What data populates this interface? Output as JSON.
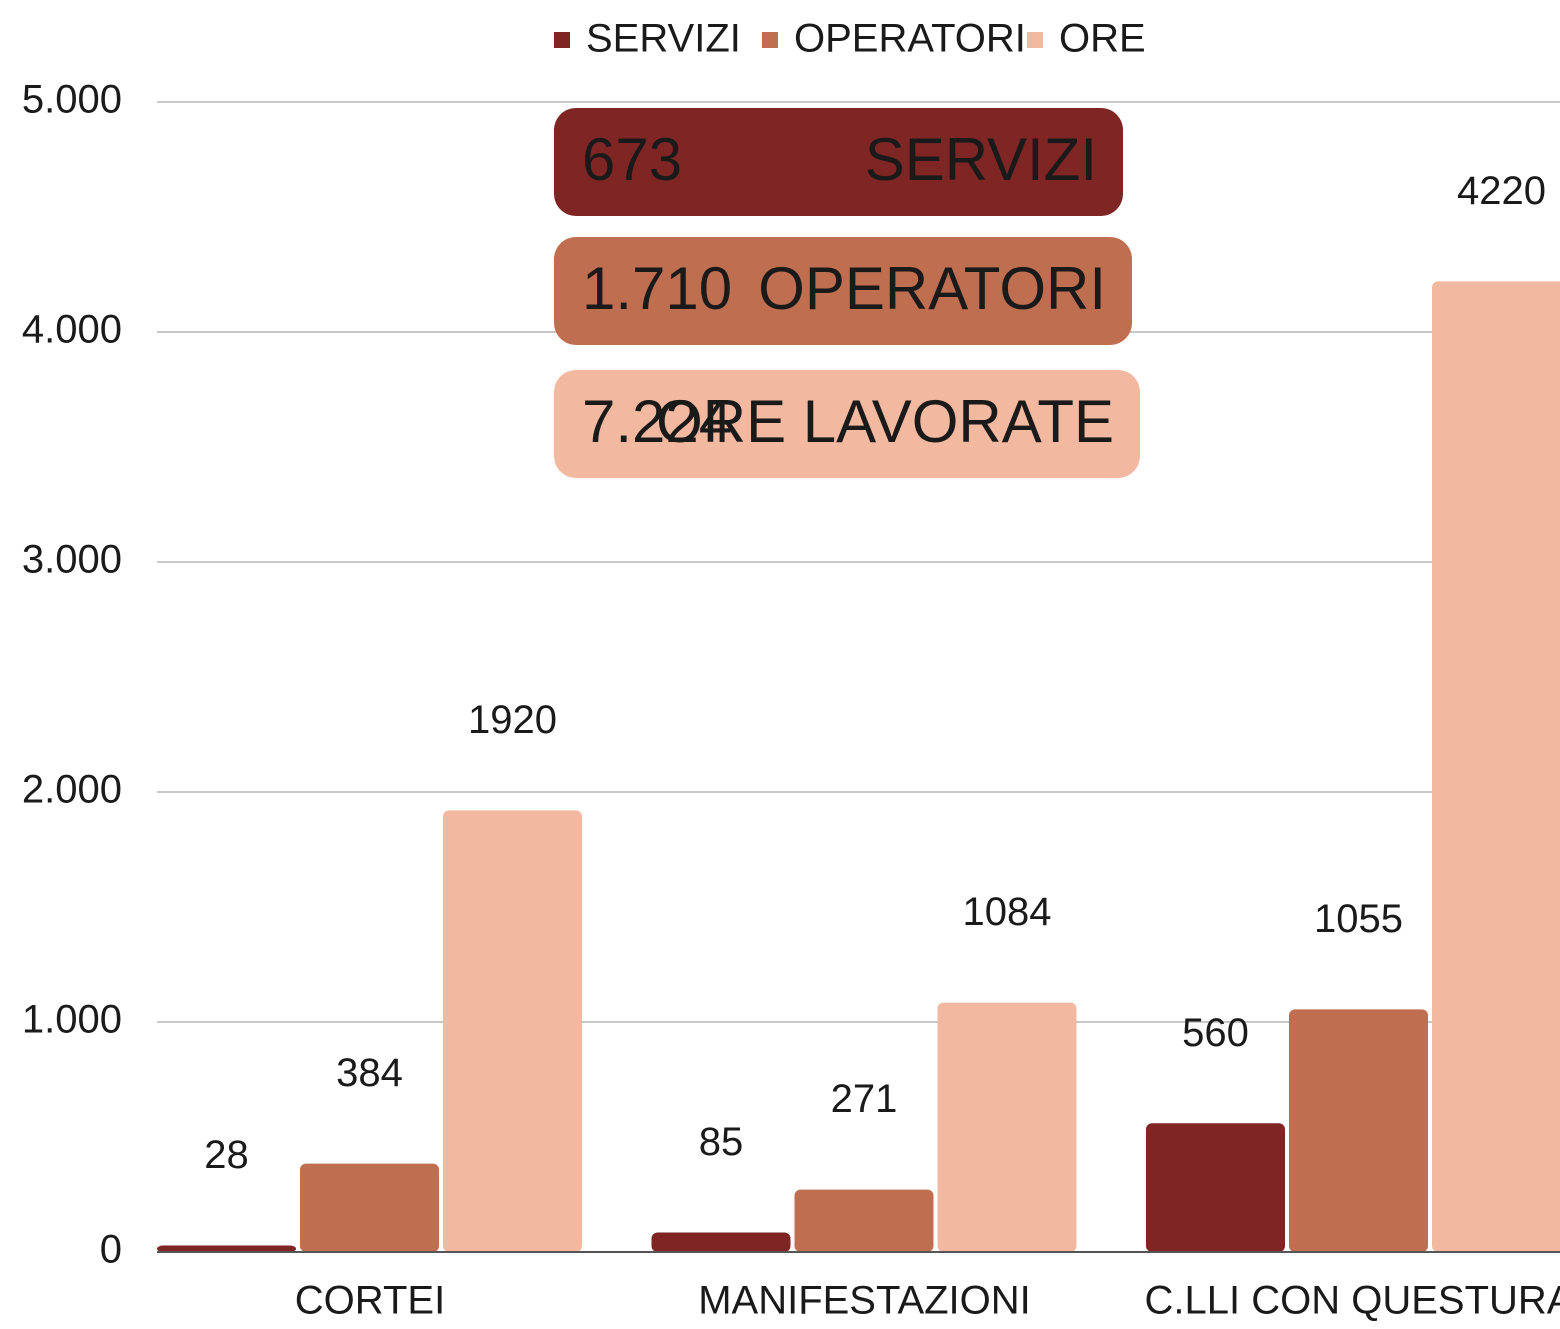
{
  "chart_data": {
    "type": "bar",
    "categories": [
      "CORTEI",
      "MANIFESTAZIONI",
      "C.LLI CON QUESTURA"
    ],
    "series": [
      {
        "name": "SERVIZI",
        "color": "#7f2625",
        "values": [
          28,
          85,
          560
        ]
      },
      {
        "name": "OPERATORI",
        "color": "#c06e50",
        "values": [
          384,
          271,
          1055
        ]
      },
      {
        "name": "ORE",
        "color": "#f3b9a0",
        "values": [
          1920,
          1084,
          4220
        ]
      }
    ],
    "ylim": [
      0,
      5000
    ],
    "yticks": [
      0,
      {
        "value": 1000,
        "label": "1.000"
      },
      {
        "value": 2000,
        "label": "2.000"
      },
      {
        "value": 3000,
        "label": "3.000"
      },
      {
        "value": 4000,
        "label": "4.000"
      },
      {
        "value": 5000,
        "label": "5.000"
      }
    ],
    "grid": true,
    "legend": "top",
    "annotations": [
      {
        "number": "673",
        "text": "SERVIZI",
        "color": "#7f2625",
        "text_color": "#ffffff"
      },
      {
        "number": "1.710",
        "text": "OPERATORI",
        "color": "#c06e50",
        "text_color": "#ffffff"
      },
      {
        "number": "7.224",
        "text": "ORE LAVORATE",
        "color": "#f3b9a0",
        "text_color": "#1a1a1a"
      }
    ]
  }
}
